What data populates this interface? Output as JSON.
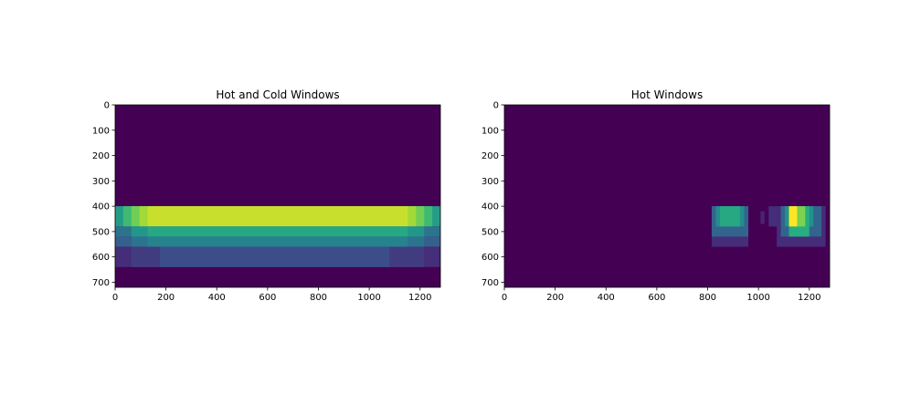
{
  "chart_data": [
    {
      "type": "heatmap",
      "title": "Hot and Cold Windows",
      "xlim": [
        0,
        1280
      ],
      "ylim": [
        720,
        0
      ],
      "xticks": [
        "0",
        "200",
        "400",
        "600",
        "800",
        "1000",
        "1200"
      ],
      "yticks": [
        "0",
        "100",
        "200",
        "300",
        "400",
        "500",
        "600",
        "700"
      ],
      "colormap": "viridis",
      "background_value": 0,
      "max_value": 1,
      "rects": [
        {
          "x0": 0,
          "x1": 1280,
          "y0": 400,
          "y1": 480,
          "value": 0.55
        },
        {
          "x0": 32,
          "x1": 1248,
          "y0": 400,
          "y1": 480,
          "value": 0.68
        },
        {
          "x0": 64,
          "x1": 1216,
          "y0": 400,
          "y1": 480,
          "value": 0.78
        },
        {
          "x0": 96,
          "x1": 1184,
          "y0": 400,
          "y1": 480,
          "value": 0.86
        },
        {
          "x0": 128,
          "x1": 1152,
          "y0": 400,
          "y1": 480,
          "value": 0.92
        },
        {
          "x0": 0,
          "x1": 1280,
          "y0": 480,
          "y1": 520,
          "value": 0.38
        },
        {
          "x0": 64,
          "x1": 1216,
          "y0": 480,
          "y1": 520,
          "value": 0.52
        },
        {
          "x0": 128,
          "x1": 1152,
          "y0": 480,
          "y1": 520,
          "value": 0.6
        },
        {
          "x0": 0,
          "x1": 1280,
          "y0": 520,
          "y1": 560,
          "value": 0.3
        },
        {
          "x0": 64,
          "x1": 1216,
          "y0": 520,
          "y1": 560,
          "value": 0.38
        },
        {
          "x0": 128,
          "x1": 1152,
          "y0": 520,
          "y1": 560,
          "value": 0.44
        },
        {
          "x0": 0,
          "x1": 1280,
          "y0": 560,
          "y1": 640,
          "value": 0.15
        },
        {
          "x0": 64,
          "x1": 1216,
          "y0": 560,
          "y1": 640,
          "value": 0.19
        },
        {
          "x0": 176,
          "x1": 1080,
          "y0": 560,
          "y1": 640,
          "value": 0.24
        }
      ]
    },
    {
      "type": "heatmap",
      "title": "Hot Windows",
      "xlim": [
        0,
        1280
      ],
      "ylim": [
        720,
        0
      ],
      "xticks": [
        "0",
        "200",
        "400",
        "600",
        "800",
        "1000",
        "1200"
      ],
      "yticks": [
        "0",
        "100",
        "200",
        "300",
        "400",
        "500",
        "600",
        "700"
      ],
      "colormap": "viridis",
      "background_value": 0,
      "max_value": 1,
      "rects": [
        {
          "x0": 816,
          "x1": 960,
          "y0": 400,
          "y1": 560,
          "value": 0.15
        },
        {
          "x0": 816,
          "x1": 960,
          "y0": 400,
          "y1": 520,
          "value": 0.32
        },
        {
          "x0": 832,
          "x1": 944,
          "y0": 400,
          "y1": 480,
          "value": 0.48
        },
        {
          "x0": 848,
          "x1": 928,
          "y0": 400,
          "y1": 480,
          "value": 0.6
        },
        {
          "x0": 1008,
          "x1": 1024,
          "y0": 420,
          "y1": 470,
          "value": 0.12
        },
        {
          "x0": 1040,
          "x1": 1264,
          "y0": 400,
          "y1": 480,
          "value": 0.15
        },
        {
          "x0": 1072,
          "x1": 1264,
          "y0": 400,
          "y1": 560,
          "value": 0.15
        },
        {
          "x0": 1088,
          "x1": 1248,
          "y0": 400,
          "y1": 520,
          "value": 0.32
        },
        {
          "x0": 1104,
          "x1": 1216,
          "y0": 400,
          "y1": 480,
          "value": 0.5
        },
        {
          "x0": 1120,
          "x1": 1200,
          "y0": 400,
          "y1": 520,
          "value": 0.62
        },
        {
          "x0": 1136,
          "x1": 1184,
          "y0": 400,
          "y1": 480,
          "value": 0.8
        },
        {
          "x0": 1120,
          "x1": 1152,
          "y0": 400,
          "y1": 480,
          "value": 1.0
        }
      ]
    }
  ]
}
